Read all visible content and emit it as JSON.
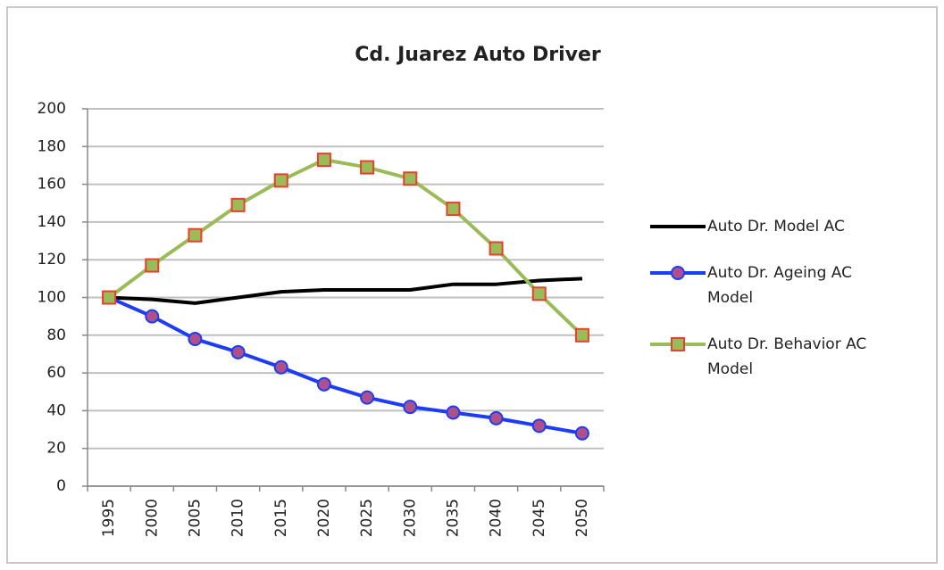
{
  "chart_data": {
    "type": "line",
    "title": "Cd. Juarez Auto Driver",
    "categories": [
      "1995",
      "2000",
      "2005",
      "2010",
      "2015",
      "2020",
      "2025",
      "2030",
      "2035",
      "2040",
      "2045",
      "2050"
    ],
    "series": [
      {
        "name": "Auto Dr. Model AC",
        "color": "#000000",
        "values": [
          100,
          99,
          97,
          100,
          103,
          104,
          104,
          104,
          107,
          107,
          109,
          110
        ]
      },
      {
        "name": "Auto Dr. Ageing AC Model",
        "color": "#1c3cf5",
        "marker": "circle",
        "marker_color": "#b0508a",
        "values": [
          100,
          90,
          78,
          71,
          63,
          54,
          47,
          42,
          39,
          36,
          32,
          28
        ]
      },
      {
        "name": "Auto Dr. Behavior AC Model",
        "color": "#9bbb59",
        "marker": "square",
        "marker_color": "#e8402c",
        "values": [
          100,
          117,
          133,
          149,
          162,
          173,
          169,
          163,
          147,
          126,
          102,
          80
        ]
      }
    ],
    "ylim": [
      0,
      200
    ],
    "yticks": [
      0,
      20,
      40,
      60,
      80,
      100,
      120,
      140,
      160,
      180,
      200
    ],
    "grid": true,
    "legend": "right"
  }
}
